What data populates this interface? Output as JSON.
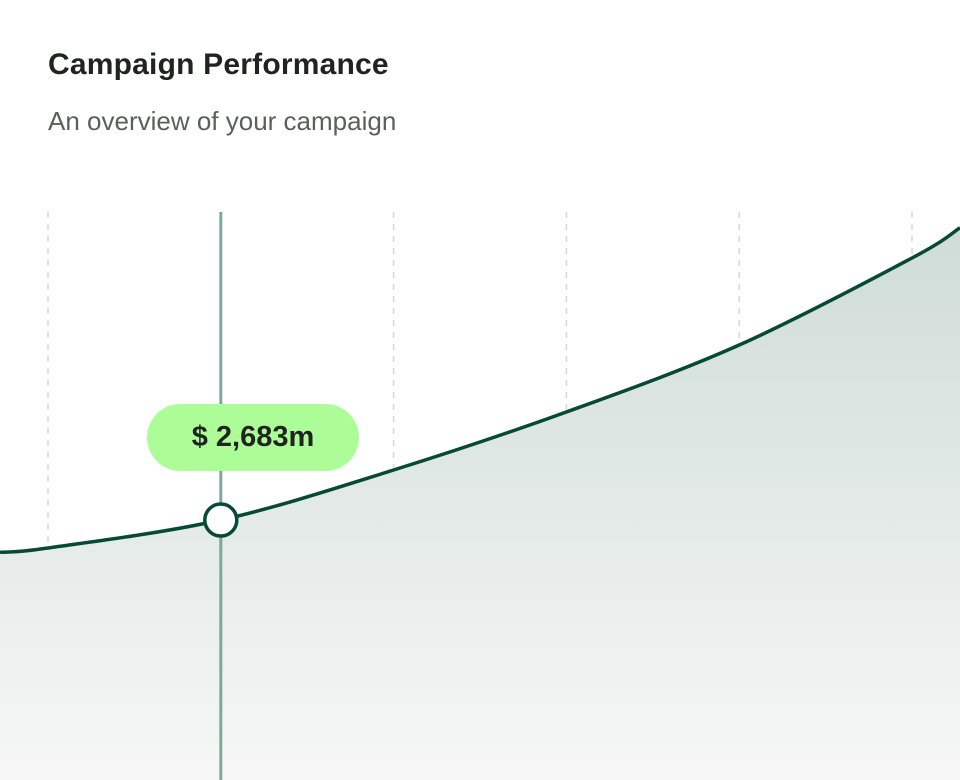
{
  "header": {
    "title": "Campaign Performance",
    "subtitle": "An overview of your campaign"
  },
  "colors": {
    "line": "#064a33",
    "highlight_line": "#7fa898",
    "tooltip_bg": "#acfc98",
    "fill_top": "#cfdcd8",
    "fill_bottom": "#f6f7f6",
    "grid": "#d4d8d6"
  },
  "chart_data": {
    "type": "area",
    "title": "",
    "xlabel": "",
    "ylabel": "",
    "x": [
      0,
      1,
      2,
      3,
      4,
      5
    ],
    "series": [
      {
        "values": [
          2394,
          2683,
          3199,
          3798,
          4489,
          5387
        ]
      }
    ],
    "ylim": [
      0,
      7500
    ],
    "grid": "vertical dashed",
    "highlight": {
      "index": 1,
      "label": "$ 2,683m"
    }
  }
}
